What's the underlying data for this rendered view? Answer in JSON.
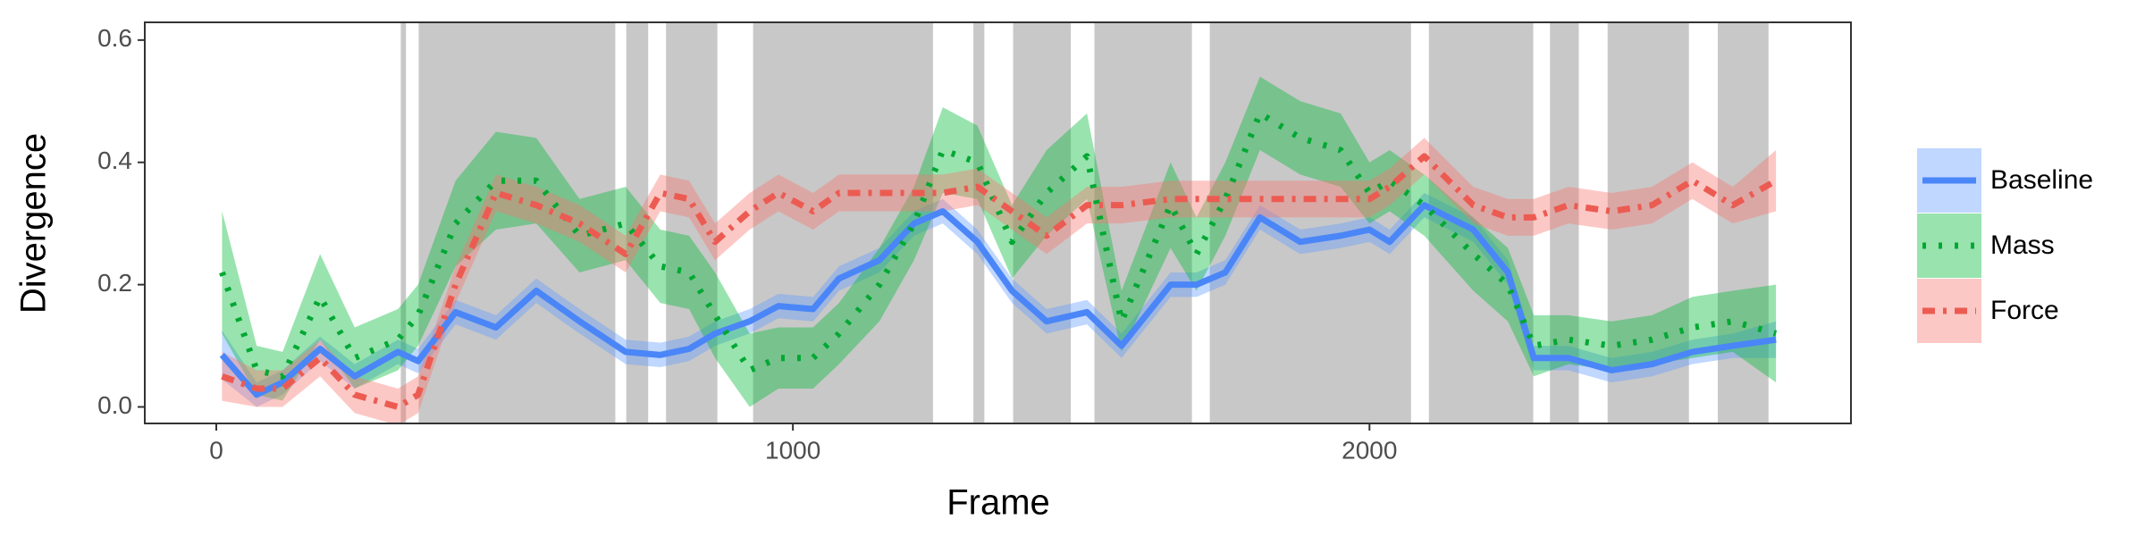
{
  "chart_data": {
    "type": "line",
    "xlabel": "Frame",
    "ylabel": "Divergence",
    "x": [
      10,
      70,
      115,
      180,
      240,
      315,
      350,
      415,
      485,
      555,
      630,
      710,
      770,
      820,
      865,
      925,
      975,
      1035,
      1080,
      1150,
      1210,
      1260,
      1320,
      1380,
      1440,
      1510,
      1570,
      1655,
      1700,
      1750,
      1810,
      1880,
      1950,
      2000,
      2035,
      2095,
      2180,
      2240,
      2285,
      2345,
      2420,
      2490,
      2560,
      2630,
      2705
    ],
    "series": [
      {
        "name": "Baseline",
        "color": "#619CFF",
        "line_color": "#4a86f7",
        "dash": "solid",
        "values": [
          0.085,
          0.02,
          0.04,
          0.095,
          0.05,
          0.09,
          0.075,
          0.155,
          0.13,
          0.19,
          0.14,
          0.09,
          0.085,
          0.095,
          0.12,
          0.14,
          0.165,
          0.16,
          0.21,
          0.24,
          0.3,
          0.32,
          0.27,
          0.19,
          0.14,
          0.155,
          0.1,
          0.2,
          0.2,
          0.22,
          0.31,
          0.27,
          0.28,
          0.29,
          0.27,
          0.33,
          0.29,
          0.22,
          0.08,
          0.08,
          0.06,
          0.07,
          0.09,
          0.1,
          0.11
        ],
        "errors": [
          0.04,
          0.02,
          0.02,
          0.02,
          0.02,
          0.02,
          0.02,
          0.02,
          0.02,
          0.02,
          0.02,
          0.02,
          0.02,
          0.02,
          0.02,
          0.02,
          0.02,
          0.02,
          0.02,
          0.02,
          0.02,
          0.02,
          0.02,
          0.02,
          0.02,
          0.02,
          0.02,
          0.02,
          0.02,
          0.02,
          0.02,
          0.02,
          0.02,
          0.02,
          0.02,
          0.02,
          0.02,
          0.02,
          0.02,
          0.02,
          0.02,
          0.02,
          0.02,
          0.02,
          0.03
        ]
      },
      {
        "name": "Mass",
        "color": "#00BA38",
        "line_color": "#00a832",
        "dash": "dotted",
        "values": [
          0.22,
          0.06,
          0.05,
          0.18,
          0.08,
          0.11,
          0.15,
          0.3,
          0.37,
          0.37,
          0.28,
          0.3,
          0.23,
          0.22,
          0.15,
          0.06,
          0.08,
          0.08,
          0.12,
          0.2,
          0.3,
          0.42,
          0.4,
          0.27,
          0.35,
          0.41,
          0.14,
          0.33,
          0.25,
          0.34,
          0.48,
          0.44,
          0.42,
          0.35,
          0.37,
          0.33,
          0.25,
          0.2,
          0.1,
          0.11,
          0.1,
          0.11,
          0.13,
          0.14,
          0.12
        ],
        "errors": [
          0.1,
          0.04,
          0.04,
          0.07,
          0.05,
          0.05,
          0.05,
          0.07,
          0.08,
          0.07,
          0.06,
          0.06,
          0.06,
          0.06,
          0.07,
          0.06,
          0.05,
          0.05,
          0.05,
          0.06,
          0.06,
          0.07,
          0.06,
          0.06,
          0.07,
          0.07,
          0.05,
          0.07,
          0.06,
          0.06,
          0.06,
          0.06,
          0.06,
          0.05,
          0.05,
          0.05,
          0.06,
          0.06,
          0.05,
          0.04,
          0.04,
          0.04,
          0.05,
          0.05,
          0.08
        ]
      },
      {
        "name": "Force",
        "color": "#F8766D",
        "line_color": "#ec5b52",
        "dash": "dashdot",
        "values": [
          0.05,
          0.03,
          0.03,
          0.08,
          0.02,
          0.0,
          0.02,
          0.2,
          0.35,
          0.33,
          0.3,
          0.25,
          0.35,
          0.34,
          0.27,
          0.32,
          0.35,
          0.32,
          0.35,
          0.35,
          0.35,
          0.35,
          0.36,
          0.32,
          0.28,
          0.33,
          0.33,
          0.34,
          0.34,
          0.34,
          0.34,
          0.34,
          0.34,
          0.34,
          0.36,
          0.41,
          0.33,
          0.31,
          0.31,
          0.33,
          0.32,
          0.33,
          0.37,
          0.33,
          0.37
        ],
        "errors": [
          0.04,
          0.03,
          0.03,
          0.03,
          0.03,
          0.03,
          0.03,
          0.03,
          0.03,
          0.03,
          0.03,
          0.03,
          0.03,
          0.03,
          0.03,
          0.03,
          0.03,
          0.03,
          0.03,
          0.03,
          0.03,
          0.03,
          0.03,
          0.03,
          0.03,
          0.03,
          0.03,
          0.03,
          0.03,
          0.03,
          0.03,
          0.03,
          0.03,
          0.03,
          0.03,
          0.03,
          0.03,
          0.03,
          0.03,
          0.03,
          0.03,
          0.03,
          0.03,
          0.03,
          0.05
        ]
      }
    ],
    "shaded_regions": [
      [
        320,
        329
      ],
      [
        351,
        692
      ],
      [
        711,
        749
      ],
      [
        780,
        869
      ],
      [
        931,
        1243
      ],
      [
        1313,
        1332
      ],
      [
        1382,
        1482
      ],
      [
        1523,
        1692
      ],
      [
        1723,
        2072
      ],
      [
        2103,
        2284
      ],
      [
        2313,
        2363
      ],
      [
        2413,
        2554
      ],
      [
        2604,
        2692
      ]
    ],
    "shade_color": "#c8c8c8",
    "xlim": [
      -124,
      2835
    ],
    "xticks": [
      0,
      1000,
      2000
    ],
    "ylim": [
      -0.027,
      0.629
    ],
    "yticks": [
      {
        "value": 0,
        "label": "0.0"
      },
      0.2,
      0.4,
      0.6
    ],
    "grid": false,
    "legend": "right"
  }
}
